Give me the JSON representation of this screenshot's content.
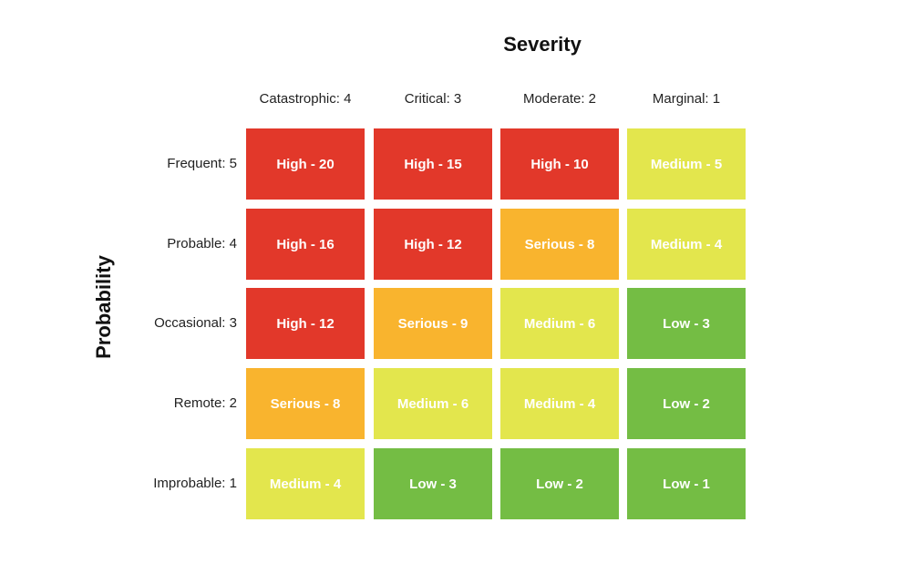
{
  "title": "Severity",
  "y_title": "Probability",
  "columns": [
    "Catastrophic: 4",
    "Critical: 3",
    "Moderate: 2",
    "Marginal: 1"
  ],
  "rows": [
    "Frequent: 5",
    "Probable: 4",
    "Occasional: 3",
    "Remote: 2",
    "Improbable: 1"
  ],
  "colors": {
    "High": "#e2382a",
    "Serious": "#f9b42e",
    "Medium": "#e3e64d",
    "Low": "#74bd44"
  },
  "cells": [
    [
      {
        "level": "High",
        "label": "High - 20"
      },
      {
        "level": "High",
        "label": "High - 15"
      },
      {
        "level": "High",
        "label": "High - 10"
      },
      {
        "level": "Medium",
        "label": "Medium - 5"
      }
    ],
    [
      {
        "level": "High",
        "label": "High - 16"
      },
      {
        "level": "High",
        "label": "High - 12"
      },
      {
        "level": "Serious",
        "label": "Serious - 8"
      },
      {
        "level": "Medium",
        "label": "Medium - 4"
      }
    ],
    [
      {
        "level": "High",
        "label": "High - 12"
      },
      {
        "level": "Serious",
        "label": "Serious - 9"
      },
      {
        "level": "Medium",
        "label": "Medium - 6"
      },
      {
        "level": "Low",
        "label": "Low - 3"
      }
    ],
    [
      {
        "level": "Serious",
        "label": "Serious - 8"
      },
      {
        "level": "Medium",
        "label": "Medium - 6"
      },
      {
        "level": "Medium",
        "label": "Medium - 4"
      },
      {
        "level": "Low",
        "label": "Low - 2"
      }
    ],
    [
      {
        "level": "Medium",
        "label": "Medium - 4"
      },
      {
        "level": "Low",
        "label": "Low - 3"
      },
      {
        "level": "Low",
        "label": "Low - 2"
      },
      {
        "level": "Low",
        "label": "Low - 1"
      }
    ]
  ]
}
